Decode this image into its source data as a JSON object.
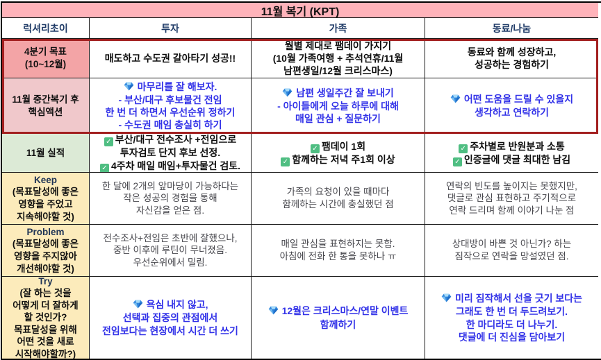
{
  "title": "11월 복기 (KPT)",
  "columns": [
    "럭셔리초이",
    "투자",
    "가족",
    "동료/나눔"
  ],
  "colors": {
    "title_bg": "#FFB3BA",
    "header_text": "#1E3A66",
    "label_pink_strong": "#F3A4A6",
    "label_pink_soft": "#F0C8CB",
    "label_green": "#DCEAD6",
    "label_yellow": "#FCEBBB",
    "highlight_border": "#A32020",
    "accent_blue_text": "#3232E8",
    "check_green": "#4FBE82"
  },
  "rows": [
    {
      "name": "quarter-goal",
      "label": {
        "lines": [
          "4분기 목표",
          "(10~12월)"
        ],
        "bg": "#F3A4A6",
        "head": false
      },
      "cells": [
        {
          "style": "s-black-bold",
          "lines": [
            {
              "text": "매도하고 수도권 갈아타기 성공!!"
            }
          ]
        },
        {
          "style": "s-black-bold",
          "lines": [
            {
              "text": "월별 제대로 팸데이 가지기"
            },
            {
              "text": "(10월 가족여행 + 추석연휴/11월"
            },
            {
              "text": "남편생일/12월 크리스마스)"
            }
          ]
        },
        {
          "style": "s-black-bold",
          "lines": [
            {
              "text": "동료와 함께 성장하고,"
            },
            {
              "text": "성공하는 경험하기"
            }
          ]
        }
      ]
    },
    {
      "name": "mid-review-action",
      "label": {
        "lines": [
          "11월 중간복기 후",
          "핵심액션"
        ],
        "bg": "#F0C8CB",
        "head": false
      },
      "cells": [
        {
          "style": "s-blue",
          "lines": [
            {
              "icon": "gem-icon",
              "text": "마무리를 잘 해보자."
            },
            {
              "text": "- 부산/대구 후보물건 전임"
            },
            {
              "text": "한 번 더 하면서 우선순위 정하기"
            },
            {
              "text": "- 수도권 매임 충실히 하기"
            }
          ]
        },
        {
          "style": "s-blue",
          "lines": [
            {
              "icon": "gem-icon",
              "text": "남편 생일주간 잘 보내기"
            },
            {
              "text": "- 아이들에게 오늘 하루에 대해"
            },
            {
              "text": "매일 관심 + 질문하기"
            }
          ]
        },
        {
          "style": "s-blue",
          "lines": [
            {
              "icon": "gem-icon",
              "text": "어떤 도움을 드릴 수 있을지"
            },
            {
              "text": "생각하고 연락하기"
            }
          ]
        }
      ]
    },
    {
      "name": "november-results",
      "label": {
        "lines": [
          "11월 실적"
        ],
        "bg": "#DCEAD6",
        "head": false
      },
      "cells": [
        {
          "style": "s-check",
          "lines": [
            {
              "icon": "check-icon",
              "text": "부산/대구 전수조사 +전임으로"
            },
            {
              "text": "투자검토 단지 후보 선정."
            },
            {
              "icon": "check-icon",
              "text": "4주차 매일 매임+투자물건 검토."
            }
          ]
        },
        {
          "style": "s-check",
          "lines": [
            {
              "icon": "check-icon",
              "text": "팸데이 1회"
            },
            {
              "icon": "check-icon",
              "text": "함께하는 저녁 주1회 이상"
            }
          ]
        },
        {
          "style": "s-check",
          "lines": [
            {
              "icon": "check-icon",
              "text": "주차별로 반원분과 소통"
            },
            {
              "icon": "check-icon",
              "text": "인증글에 댓글 최대한 남김"
            }
          ]
        }
      ]
    },
    {
      "name": "keep",
      "label": {
        "lines": [
          "Keep",
          "(목표달성에 좋은",
          "영향을 주었고",
          "지속해야할 것)"
        ],
        "bg": "#FCEBBB",
        "head": true
      },
      "cells": [
        {
          "style": "s-plain",
          "lines": [
            {
              "text": "한 달에 2개의 앞마당이 가능하다는"
            },
            {
              "text": "작은 성공의 경험을 통해"
            },
            {
              "text": "자신감을 얻은 점."
            }
          ]
        },
        {
          "style": "s-plain",
          "lines": [
            {
              "text": "가족의 요청이 있을 때마다"
            },
            {
              "text": "함께하는 시간에 충실했던 점"
            }
          ]
        },
        {
          "style": "s-plain",
          "lines": [
            {
              "text": "연락의 빈도를 높이지는 못했지만,"
            },
            {
              "text": "댓글로 관심 표현하고 주기적으로"
            },
            {
              "text": "연락 드리며 함께 이야기 나눈 점"
            }
          ]
        }
      ]
    },
    {
      "name": "problem",
      "label": {
        "lines": [
          "Problem",
          "(목표달성에 좋은",
          "영향을 주지않아",
          "개선해야할 것)"
        ],
        "bg": "#FCEBBB",
        "head": true
      },
      "cells": [
        {
          "style": "s-plain",
          "lines": [
            {
              "text": "전수조사+전임은 초반에 잘했으나,"
            },
            {
              "text": "중반 이후에 루틴이 무너졌음."
            },
            {
              "text": "우선순위에서 밀림."
            }
          ]
        },
        {
          "style": "s-plain",
          "lines": [
            {
              "text": "매일 관심을 표현하지는 못함."
            },
            {
              "text": "아침에 전화 한 통을 못하나 ㅠ"
            }
          ]
        },
        {
          "style": "s-plain",
          "lines": [
            {
              "text": "상대방이 바쁜 것 아닌가? 하는"
            },
            {
              "text": "짐작으로 연락을 망설였던 점."
            }
          ]
        }
      ]
    },
    {
      "name": "try",
      "label": {
        "lines": [
          "Try",
          "(잘 하는 것을",
          "어떻게 더 잘하게",
          "할 것인가?",
          "목표달성을 위해",
          "어떤 것을 새로",
          "시작해야할까?)"
        ],
        "bg": "#FCEBBB",
        "head": true
      },
      "cells": [
        {
          "style": "s-blue",
          "lines": [
            {
              "icon": "gem-icon",
              "text": "욕심 내지 않고,"
            },
            {
              "text": "선택과 집중의 관점에서"
            },
            {
              "text": "전임보다는 현장에서 시간 더 쓰기"
            }
          ]
        },
        {
          "style": "s-blue",
          "lines": [
            {
              "icon": "gem-icon",
              "text": "12월은 크리스마스/연말 이벤트"
            },
            {
              "text": "함께하기"
            }
          ]
        },
        {
          "style": "s-blue",
          "lines": [
            {
              "icon": "gem-icon",
              "text": "미리 짐작해서 선을 긋기 보다는"
            },
            {
              "text": "그래도 한 번 더 두드려보기."
            },
            {
              "text": "한 마디라도 더 나누기."
            },
            {
              "text": "댓글에 더 진심을 담아보기"
            }
          ]
        }
      ]
    }
  ]
}
